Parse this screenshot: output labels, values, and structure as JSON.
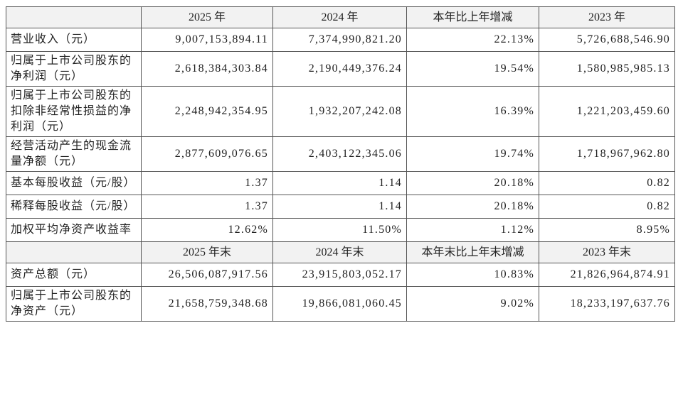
{
  "table": {
    "header": [
      "",
      "2025 年",
      "2024 年",
      "本年比上年增减",
      "2023 年"
    ],
    "rows": [
      [
        "营业收入（元）",
        "9,007,153,894.11",
        "7,374,990,821.20",
        "22.13%",
        "5,726,688,546.90"
      ],
      [
        "归属于上市公司股东的净利润（元）",
        "2,618,384,303.84",
        "2,190,449,376.24",
        "19.54%",
        "1,580,985,985.13"
      ],
      [
        "归属于上市公司股东的扣除非经常性损益的净利润（元）",
        "2,248,942,354.95",
        "1,932,207,242.08",
        "16.39%",
        "1,221,203,459.60"
      ],
      [
        "经营活动产生的现金流量净额（元）",
        "2,877,609,076.65",
        "2,403,122,345.06",
        "19.74%",
        "1,718,967,962.80"
      ],
      [
        "基本每股收益（元/股）",
        "1.37",
        "1.14",
        "20.18%",
        "0.82"
      ],
      [
        "稀释每股收益（元/股）",
        "1.37",
        "1.14",
        "20.18%",
        "0.82"
      ],
      [
        "加权平均净资产收益率",
        "12.62%",
        "11.50%",
        "1.12%",
        "8.95%"
      ]
    ],
    "header2": [
      "",
      "2025 年末",
      "2024 年末",
      "本年末比上年末增减",
      "2023 年末"
    ],
    "rows2": [
      [
        "资产总额（元）",
        "26,506,087,917.56",
        "23,915,803,052.17",
        "10.83%",
        "21,826,964,874.91"
      ],
      [
        "归属于上市公司股东的净资产（元）",
        "21,658,759,348.68",
        "19,866,081,060.45",
        "9.02%",
        "18,233,197,637.76"
      ]
    ]
  }
}
